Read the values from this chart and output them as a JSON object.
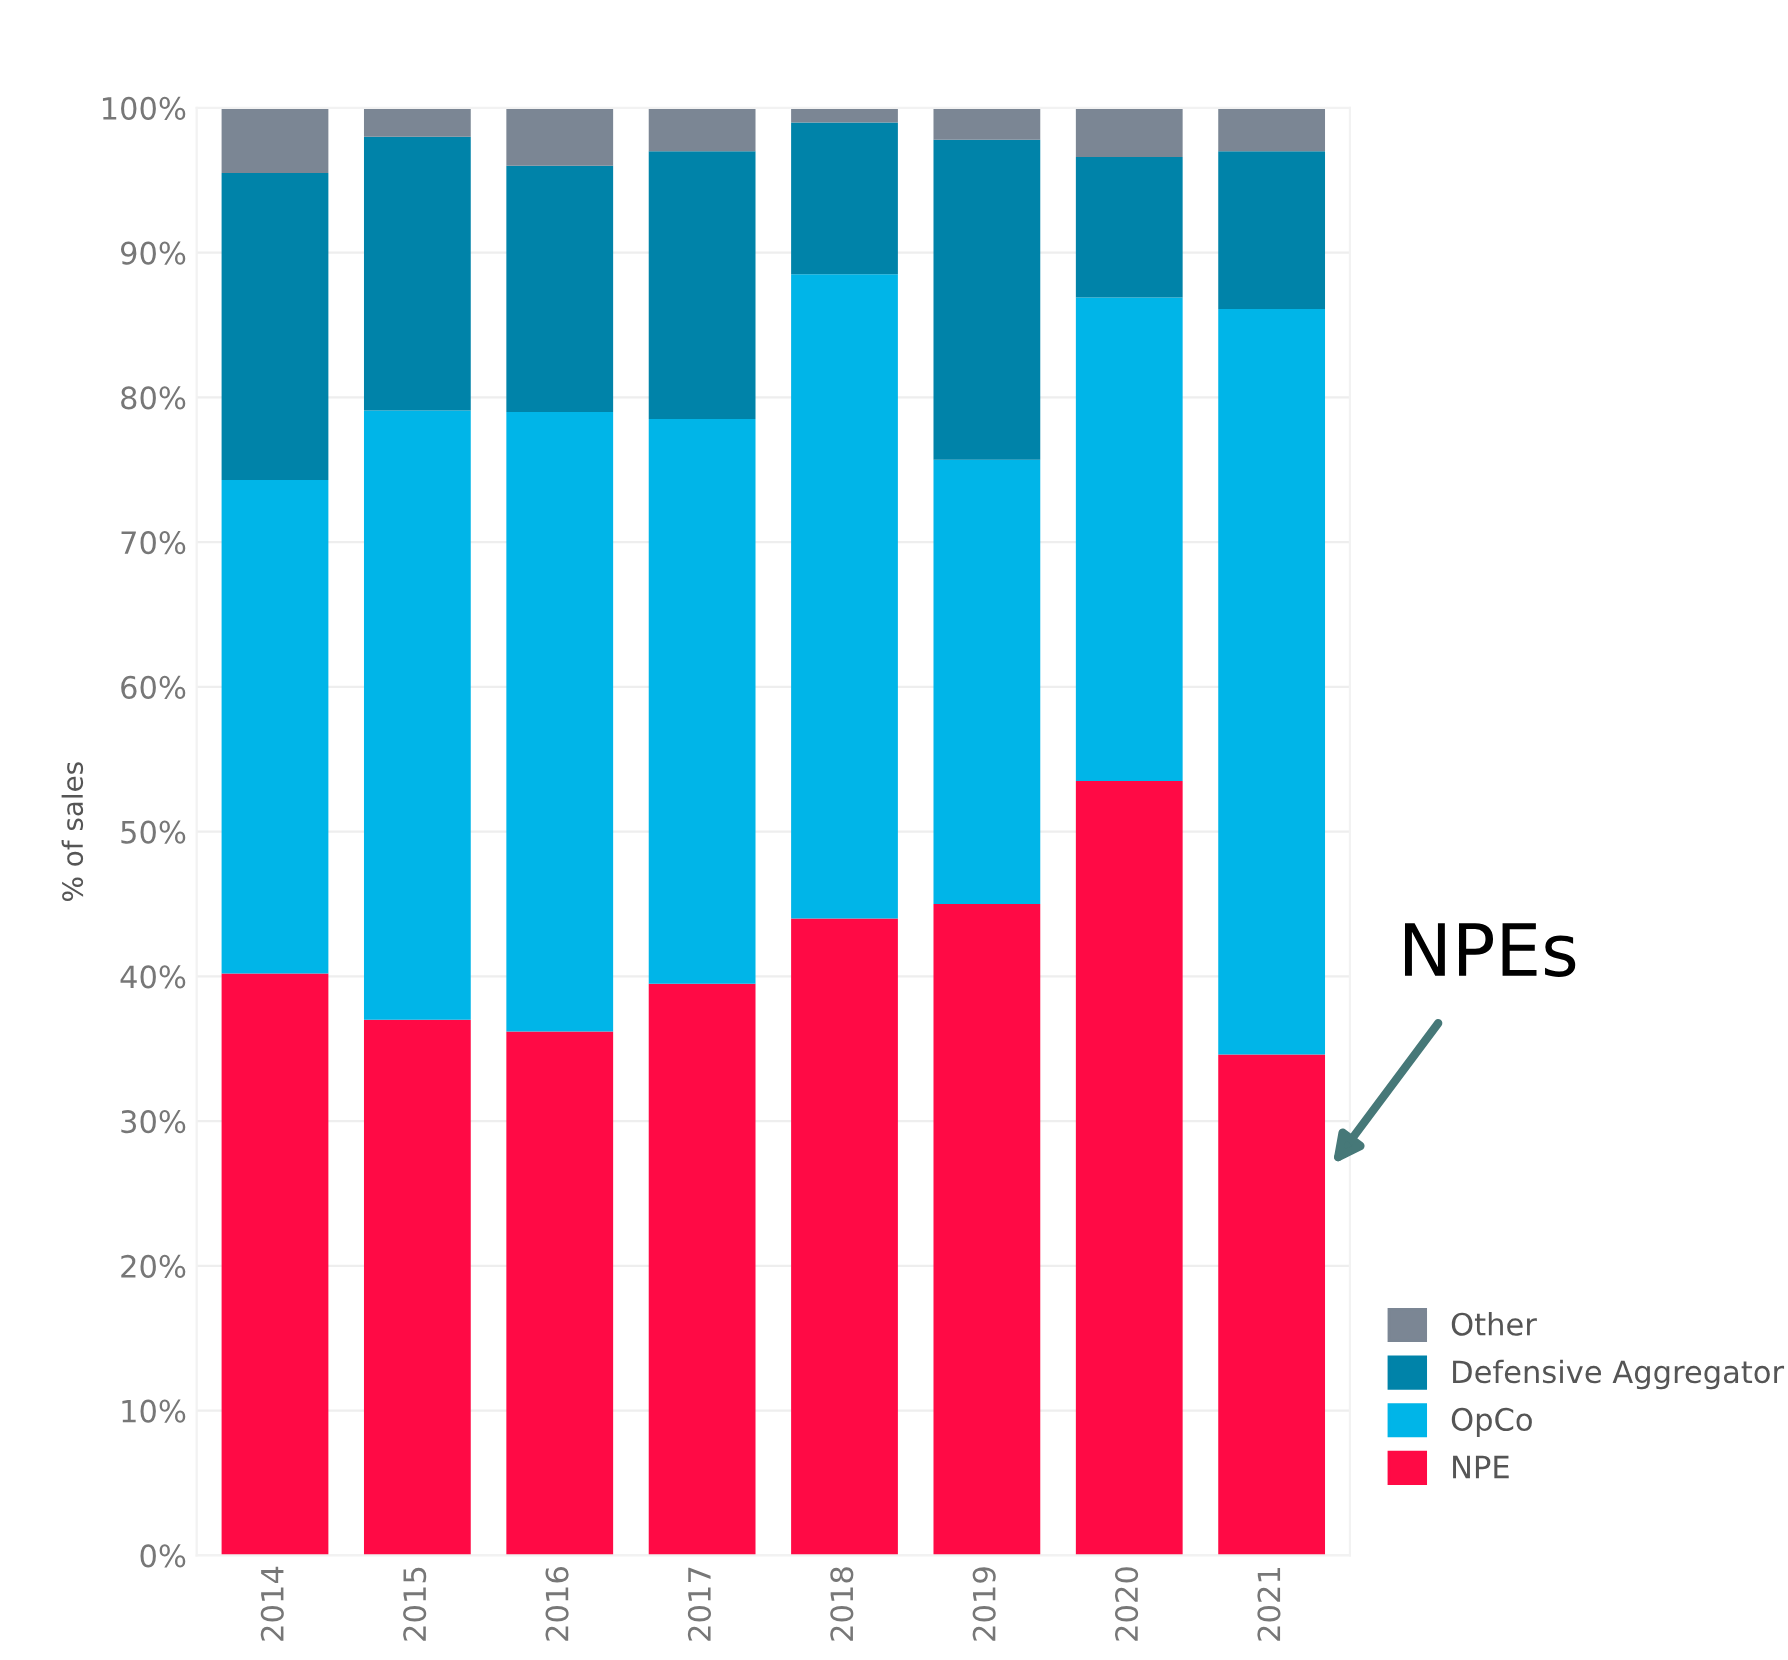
{
  "chart_data": {
    "type": "bar",
    "stacked": true,
    "ylabel": "% of sales",
    "categories": [
      "2014",
      "2015",
      "2016",
      "2017",
      "2018",
      "2019",
      "2020",
      "2021"
    ],
    "series": [
      {
        "name": "NPE",
        "color": "#ff0a45",
        "values": [
          40.2,
          37,
          36.2,
          39.5,
          44,
          45,
          53.5,
          34.6
        ]
      },
      {
        "name": "OpCo",
        "color": "#00b5e8",
        "values": [
          34.1,
          42.1,
          42.8,
          39,
          44.5,
          30.7,
          33.4,
          51.5
        ]
      },
      {
        "name": "Defensive Aggregator",
        "color": "#0083a9",
        "values": [
          21.2,
          18.9,
          17,
          18.5,
          10.5,
          22.1,
          9.7,
          10.9
        ]
      },
      {
        "name": "Other",
        "color": "#7b8694",
        "values": [
          4.5,
          2,
          4,
          3,
          1,
          2.2,
          3.4,
          3
        ]
      }
    ],
    "ylim": [
      0,
      100
    ],
    "yticks": [
      {
        "value": 0,
        "label": "0%"
      },
      {
        "value": 10,
        "label": "10%"
      },
      {
        "value": 20,
        "label": "20%"
      },
      {
        "value": 30,
        "label": "30%"
      },
      {
        "value": 40,
        "label": "40%"
      },
      {
        "value": 50,
        "label": "50%"
      },
      {
        "value": 60,
        "label": "60%"
      },
      {
        "value": 70,
        "label": "70%"
      },
      {
        "value": 80,
        "label": "80%"
      },
      {
        "value": 90,
        "label": "90%"
      },
      {
        "value": 100,
        "label": "100%"
      }
    ],
    "grid": "y",
    "legend": "bottom right",
    "annotations": [
      "NPEs"
    ]
  }
}
